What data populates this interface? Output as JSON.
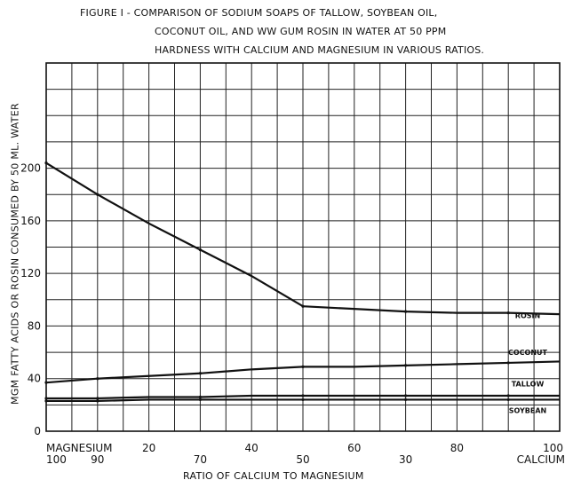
{
  "title_lines": [
    "FIGURE I - COMPARISON OF SODIUM SOAPS OF TALLOW, SOYBEAN OIL,",
    "COCONUT OIL, AND WW GUM ROSIN IN WATER AT 50 PPM",
    "HARDNESS WITH CALCIUM AND MAGNESIUM IN VARIOUS RATIOS."
  ],
  "chart_data": {
    "type": "line",
    "title": "FIGURE I - COMPARISON OF SODIUM SOAPS OF TALLOW, SOYBEAN OIL, COCONUT OIL, AND WW GUM ROSIN IN WATER AT 50 PPM HARDNESS WITH CALCIUM AND MAGNESIUM IN VARIOUS RATIOS.",
    "xlabel": "RATIO OF CALCIUM TO MAGNESIUM",
    "ylabel": "MGM FATTY ACIDS OR ROSIN CONSUMED BY 50 ML. WATER",
    "xlim": [
      0,
      100
    ],
    "ylim": [
      0,
      280
    ],
    "grid": true,
    "y_ticks": [
      "0",
      "40",
      "80",
      "120",
      "160",
      "200"
    ],
    "y_tick_values": [
      0,
      40,
      80,
      120,
      160,
      200
    ],
    "x_tick_labels_top": [
      {
        "x": 0,
        "label": "MAGNESIUM"
      },
      {
        "x": 20,
        "label": "20"
      },
      {
        "x": 40,
        "label": "40"
      },
      {
        "x": 60,
        "label": "60"
      },
      {
        "x": 80,
        "label": "80"
      },
      {
        "x": 100,
        "label": "100"
      }
    ],
    "x_tick_labels_bottom": [
      {
        "x": 0,
        "label": "100"
      },
      {
        "x": 10,
        "label": "90"
      },
      {
        "x": 30,
        "label": "70"
      },
      {
        "x": 50,
        "label": "50"
      },
      {
        "x": 70,
        "label": "30"
      },
      {
        "x": 100,
        "label": "CALCIUM"
      }
    ],
    "series": [
      {
        "name": "ROSIN",
        "x": [
          0,
          10,
          20,
          30,
          40,
          50,
          60,
          70,
          80,
          90,
          100
        ],
        "y": [
          204,
          180,
          158,
          138,
          118,
          95,
          93,
          91,
          90,
          90,
          89
        ]
      },
      {
        "name": "COCONUT",
        "x": [
          0,
          10,
          20,
          30,
          40,
          50,
          60,
          70,
          80,
          90,
          100
        ],
        "y": [
          37,
          40,
          42,
          44,
          47,
          49,
          49,
          50,
          51,
          52,
          53
        ]
      },
      {
        "name": "TALLOW",
        "x": [
          0,
          10,
          20,
          30,
          40,
          50,
          60,
          70,
          80,
          90,
          100
        ],
        "y": [
          25,
          25,
          26,
          26,
          27,
          27,
          27,
          27,
          27,
          27,
          27
        ]
      },
      {
        "name": "SOYBEAN",
        "x": [
          0,
          10,
          20,
          30,
          40,
          50,
          60,
          70,
          80,
          90,
          100
        ],
        "y": [
          23,
          23,
          24,
          24,
          24,
          24,
          24,
          24,
          24,
          24,
          24
        ]
      }
    ]
  }
}
